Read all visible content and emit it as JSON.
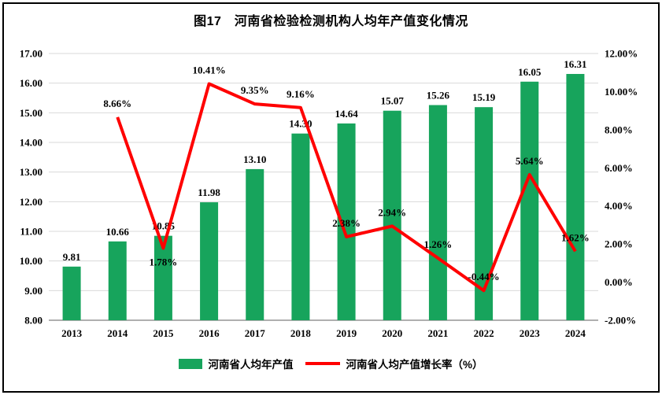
{
  "title": "图17　河南省检验检测机构人均年产值变化情况",
  "chart_data": {
    "type": "bar+line combo",
    "title": "图17　河南省检验检测机构人均年产值变化情况",
    "categories": [
      "2013",
      "2014",
      "2015",
      "2016",
      "2017",
      "2018",
      "2019",
      "2020",
      "2021",
      "2022",
      "2023",
      "2024"
    ],
    "series": [
      {
        "name": "河南省人均年产值",
        "type": "bar",
        "axis": "left",
        "color": "#17A45C",
        "values": [
          9.81,
          10.66,
          10.85,
          11.98,
          13.1,
          14.3,
          14.64,
          15.07,
          15.26,
          15.19,
          16.05,
          16.31
        ],
        "labels": [
          "9.81",
          "10.66",
          "10.85",
          "11.98",
          "13.10",
          "14.30",
          "14.64",
          "15.07",
          "15.26",
          "15.19",
          "16.05",
          "16.31"
        ]
      },
      {
        "name": "河南省人均产值增长率（%）",
        "type": "line",
        "axis": "right",
        "color": "#FF0000",
        "values": [
          null,
          8.66,
          1.78,
          10.41,
          9.35,
          9.16,
          2.38,
          2.94,
          1.26,
          -0.44,
          5.64,
          1.62
        ],
        "labels": [
          "",
          "8.66%",
          "1.78%",
          "10.41%",
          "9.35%",
          "9.16%",
          "2.38%",
          "2.94%",
          "1.26%",
          "-0.44%",
          "5.64%",
          "1.62%"
        ],
        "label_positions": [
          "above",
          "above",
          "below",
          "above",
          "above",
          "above",
          "above",
          "above",
          "above",
          "above",
          "above",
          "above"
        ]
      }
    ],
    "left_axis": {
      "min": 8,
      "max": 17,
      "step": 1,
      "ticks": [
        "8.00",
        "9.00",
        "10.00",
        "11.00",
        "12.00",
        "13.00",
        "14.00",
        "15.00",
        "16.00",
        "17.00"
      ]
    },
    "right_axis": {
      "min": -2,
      "max": 12,
      "step": 2,
      "ticks": [
        "-2.00%",
        "0.00%",
        "2.00%",
        "4.00%",
        "6.00%",
        "8.00%",
        "10.00%",
        "12.00%"
      ]
    },
    "grid": true,
    "gridline_color": "#D9D9D9",
    "axis_line_color": "#7F7F7F",
    "legend_position": "bottom"
  }
}
